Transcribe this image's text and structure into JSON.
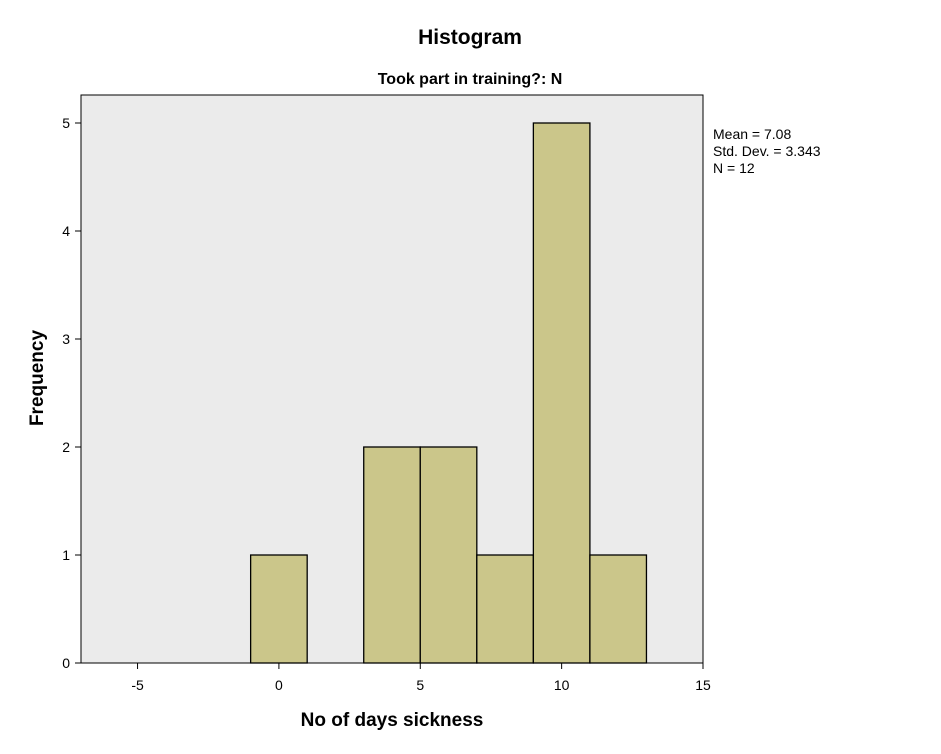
{
  "chart_data": {
    "type": "bar",
    "title": "Histogram",
    "subtitle": "Took part in training?: N",
    "xlabel": "No of days sickness",
    "ylabel": "Frequency",
    "xlim": [
      -7,
      15
    ],
    "ylim": [
      0,
      5
    ],
    "x_ticks": [
      -5,
      0,
      5,
      10,
      15
    ],
    "y_ticks": [
      0,
      1,
      2,
      3,
      4,
      5
    ],
    "bin_width": 2,
    "bins": [
      {
        "start": -1,
        "end": 1,
        "count": 1
      },
      {
        "start": 3,
        "end": 5,
        "count": 2
      },
      {
        "start": 5,
        "end": 7,
        "count": 2
      },
      {
        "start": 7,
        "end": 9,
        "count": 1
      },
      {
        "start": 9,
        "end": 11,
        "count": 5
      },
      {
        "start": 11,
        "end": 13,
        "count": 1
      }
    ],
    "stats": {
      "mean": "Mean = 7.08",
      "std_dev": "Std. Dev. = 3.343",
      "n": "N = 12"
    },
    "grid": false,
    "colors": {
      "bar_fill": "#cbc68a",
      "bar_stroke": "#000000",
      "plot_background": "#ebebeb"
    }
  }
}
